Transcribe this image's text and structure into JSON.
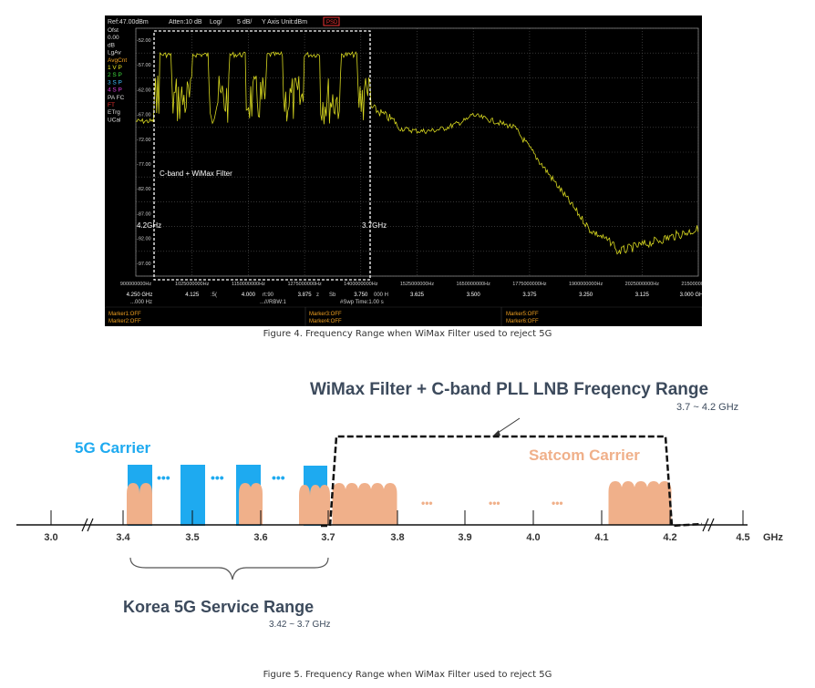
{
  "figure4": {
    "caption": "Figure 4. Frequency Range when WiMax Filter used to reject 5G",
    "analyzer": {
      "ref": "Ref:47.00dBm",
      "atten": "Atten:10 dB",
      "scale": "Log/",
      "per_div": "5 dB/",
      "y_axis": "Y Axis Unit:dBm",
      "mode_badge": "PSD",
      "side_labels": [
        "Ofst",
        "0.00",
        "dB",
        "LgAv",
        "AvgCnt",
        "1 V P",
        "2 S P",
        "3 S P",
        "4 S P",
        "PA FC",
        "FT",
        "ETrg",
        "UCal"
      ],
      "y_ticks": [
        "-52.00",
        "-57.00",
        "-62.00",
        "-67.00",
        "-72.00",
        "-77.00",
        "-82.00",
        "-87.00",
        "-92.00",
        "-97.00"
      ],
      "freq_ticks": [
        "900000000Hz",
        "1025000000Hz",
        "1150000000Hz",
        "1275000000Hz",
        "1400000000Hz",
        "1525000000Hz",
        "1650000000Hz",
        "1775000000Hz",
        "1900000000Hz",
        "2025000000Hz",
        "2150000000Hz"
      ],
      "ghz_ticks": [
        "4.250 GHz",
        "4.125",
        "4.000",
        "3.875",
        "3.750",
        "3.625",
        "3.500",
        "3.375",
        "3.250",
        "3.125",
        "3.000 GHz"
      ],
      "status_fragments": [
        "...000 Hz",
        ":5(",
        "rt:90",
        "z",
        "Sb",
        "000 H",
        "#Swp Time:1.00 s",
        "...///RBW:1"
      ],
      "markers": [
        "Marker1:OFF",
        "Marker2:OFF",
        "Marker3:OFF",
        "Marker4:OFF",
        "Marker5:OFF",
        "Marker6:OFF"
      ],
      "annotations": {
        "filter": "C-band + WiMax Filter",
        "left_edge": "4.2GHz",
        "right_edge": "3.7GHz"
      }
    }
  },
  "figure5": {
    "caption": "Figure 5. Frequency Range when WiMax Filter used to reject 5G",
    "title": "WiMax Filter + C-band PLL LNB Freqency Range",
    "title_range": "3.7 ~ 4.2 GHz",
    "carrier_5g": "5G Carrier",
    "satcom": "Satcom Carrier",
    "korea_range": "Korea 5G Service Range",
    "korea_sub": "3.42 ~ 3.7 GHz",
    "unit": "GHz",
    "axis_ticks": [
      "3.0",
      "3.4",
      "3.5",
      "3.6",
      "3.7",
      "3.8",
      "3.9",
      "4.0",
      "4.1",
      "4.2",
      "4.5"
    ],
    "ellipsis": "•••",
    "colors": {
      "blue": "#1eaaf0",
      "peach": "#f0b08a",
      "dark": "#3c4a5c"
    }
  }
}
